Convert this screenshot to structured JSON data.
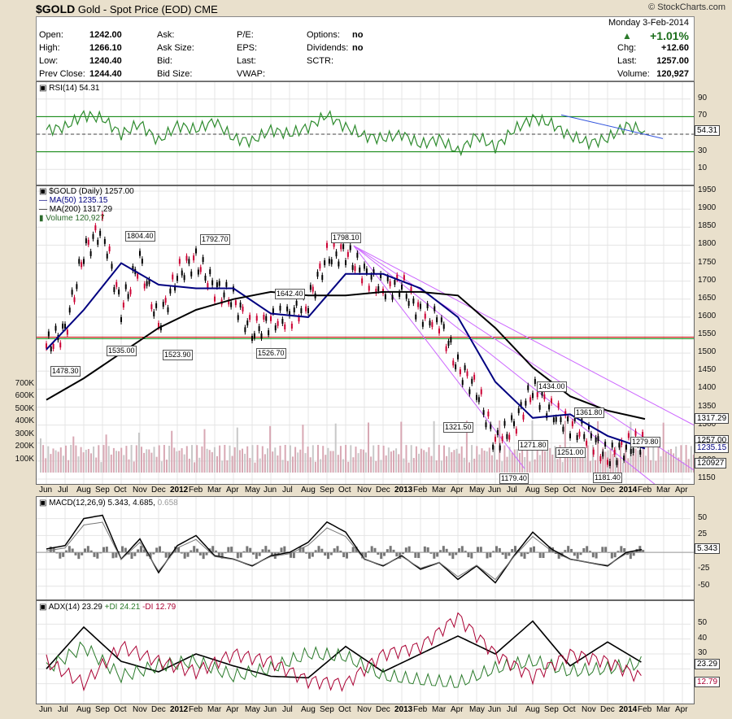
{
  "header": {
    "symbol": "$GOLD",
    "name": "Gold - Spot Price (EOD)",
    "exchange": "CME",
    "brand": "© StockCharts.com"
  },
  "quote": {
    "date": "Monday 3-Feb-2014",
    "change_pct": "+1.01%",
    "arrow": "up-triangle-icon",
    "left": [
      {
        "label": "Open:",
        "value": "1242.00"
      },
      {
        "label": "High:",
        "value": "1266.10"
      },
      {
        "label": "Low:",
        "value": "1240.40"
      },
      {
        "label": "Prev Close:",
        "value": "1244.40"
      }
    ],
    "mid": [
      {
        "label": "Ask:",
        "value": ""
      },
      {
        "label": "Ask Size:",
        "value": ""
      },
      {
        "label": "Bid:",
        "value": ""
      },
      {
        "label": "Bid Size:",
        "value": ""
      }
    ],
    "mid2": [
      {
        "label": "P/E:",
        "value": ""
      },
      {
        "label": "EPS:",
        "value": ""
      },
      {
        "label": "Last:",
        "value": ""
      },
      {
        "label": "VWAP:",
        "value": ""
      }
    ],
    "mid3": [
      {
        "label": "Options:",
        "value": "no"
      },
      {
        "label": "Dividends:",
        "value": "no"
      },
      {
        "label": "SCTR:",
        "value": ""
      }
    ],
    "right": [
      {
        "label": "Chg:",
        "value": "+12.60"
      },
      {
        "label": "Last:",
        "value": "1257.00"
      },
      {
        "label": "Volume:",
        "value": "120,927"
      }
    ]
  },
  "colors": {
    "price_up": "#000000",
    "price_down": "#cc0033",
    "ma50": "#000080",
    "ma200": "#000000",
    "rsi": "#2e8b2e",
    "trend": "#cc66ff",
    "support": "#008000",
    "resistance": "#cc0000",
    "volume": "#c8c8c8"
  },
  "chart_data": [
    {
      "type": "line",
      "panel": "rsi",
      "legend": "RSI(14) 54.31",
      "y_ticks": [
        10,
        30,
        50,
        70,
        90
      ],
      "ylim": [
        0,
        100
      ],
      "last_value": "54.31",
      "overbought": 70,
      "oversold": 30,
      "series": [
        {
          "name": "RSI(14)",
          "x": [
            "2011-06",
            "2011-07",
            "2011-08",
            "2011-09",
            "2011-10",
            "2011-11",
            "2011-12",
            "2012-01",
            "2012-02",
            "2012-03",
            "2012-04",
            "2012-05",
            "2012-06",
            "2012-07",
            "2012-08",
            "2012-09",
            "2012-10",
            "2012-11",
            "2012-12",
            "2013-01",
            "2013-02",
            "2013-03",
            "2013-04",
            "2013-05",
            "2013-06",
            "2013-07",
            "2013-08",
            "2013-09",
            "2013-10",
            "2013-11",
            "2013-12",
            "2014-01",
            "2014-02"
          ],
          "values": [
            55,
            58,
            72,
            68,
            50,
            62,
            42,
            60,
            55,
            65,
            45,
            42,
            55,
            50,
            58,
            72,
            58,
            48,
            45,
            50,
            38,
            45,
            30,
            48,
            35,
            55,
            68,
            62,
            48,
            40,
            45,
            60,
            54
          ]
        }
      ]
    },
    {
      "type": "line",
      "panel": "price",
      "legend": [
        "$GOLD (Daily) 1257.00",
        "MA(50) 1235.15",
        "MA(200) 1317.29",
        "Volume 120,927"
      ],
      "ylim": [
        1150,
        1950
      ],
      "y_ticks": [
        1150,
        1200,
        1250,
        1300,
        1350,
        1400,
        1450,
        1500,
        1550,
        1600,
        1650,
        1700,
        1750,
        1800,
        1850,
        1900,
        1950
      ],
      "vol_ticks": [
        "100K",
        "200K",
        "300K",
        "400K",
        "500K",
        "600K",
        "700K"
      ],
      "x_labels": [
        "Jun",
        "Jul",
        "Aug",
        "Sep",
        "Oct",
        "Nov",
        "Dec",
        "2012",
        "Feb",
        "Mar",
        "Apr",
        "May",
        "Jun",
        "Jul",
        "Aug",
        "Sep",
        "Oct",
        "Nov",
        "Dec",
        "2013",
        "Feb",
        "Mar",
        "Apr",
        "May",
        "Jun",
        "Jul",
        "Aug",
        "Sep",
        "Oct",
        "Nov",
        "Dec",
        "2014",
        "Feb",
        "Mar",
        "Apr"
      ],
      "price_labels": [
        {
          "text": "1478.30",
          "x": "2011-07",
          "y": 1478
        },
        {
          "text": "1804.40",
          "x": "2011-11",
          "y": 1804
        },
        {
          "text": "1535.00",
          "x": "2011-10",
          "y": 1535
        },
        {
          "text": "1523.90",
          "x": "2012-01",
          "y": 1524
        },
        {
          "text": "1792.70",
          "x": "2012-03",
          "y": 1793
        },
        {
          "text": "1526.70",
          "x": "2012-06",
          "y": 1527
        },
        {
          "text": "1642.40",
          "x": "2012-07",
          "y": 1642
        },
        {
          "text": "1798.10",
          "x": "2012-10",
          "y": 1798
        },
        {
          "text": "1321.50",
          "x": "2013-04",
          "y": 1321
        },
        {
          "text": "1179.40",
          "x": "2013-07",
          "y": 1179
        },
        {
          "text": "1271.80",
          "x": "2013-08",
          "y": 1272
        },
        {
          "text": "1434.00",
          "x": "2013-09",
          "y": 1434
        },
        {
          "text": "1251.00",
          "x": "2013-10",
          "y": 1251
        },
        {
          "text": "1361.80",
          "x": "2013-11",
          "y": 1362
        },
        {
          "text": "1181.40",
          "x": "2013-12",
          "y": 1181
        },
        {
          "text": "1279.80",
          "x": "2014-02",
          "y": 1280
        }
      ],
      "right_tags": [
        "1317.29",
        "1257.00",
        "1235.15",
        "120927"
      ],
      "series": [
        {
          "name": "$GOLD",
          "x": [
            "2011-06",
            "2011-07",
            "2011-08",
            "2011-09",
            "2011-10",
            "2011-11",
            "2011-12",
            "2012-01",
            "2012-02",
            "2012-03",
            "2012-04",
            "2012-05",
            "2012-06",
            "2012-07",
            "2012-08",
            "2012-09",
            "2012-10",
            "2012-11",
            "2012-12",
            "2013-01",
            "2013-02",
            "2013-03",
            "2013-04",
            "2013-05",
            "2013-06",
            "2013-07",
            "2013-08",
            "2013-09",
            "2013-10",
            "2013-11",
            "2013-12",
            "2014-01",
            "2014-02"
          ],
          "values": [
            1520,
            1560,
            1780,
            1850,
            1620,
            1760,
            1580,
            1720,
            1760,
            1680,
            1650,
            1560,
            1590,
            1600,
            1640,
            1770,
            1780,
            1720,
            1680,
            1690,
            1610,
            1590,
            1460,
            1400,
            1250,
            1300,
            1400,
            1340,
            1300,
            1270,
            1210,
            1240,
            1257
          ]
        },
        {
          "name": "MA(50)",
          "x": [
            "2011-06",
            "2011-08",
            "2011-10",
            "2011-12",
            "2012-02",
            "2012-04",
            "2012-06",
            "2012-08",
            "2012-10",
            "2012-12",
            "2013-02",
            "2013-04",
            "2013-06",
            "2013-08",
            "2013-10",
            "2013-12",
            "2014-02"
          ],
          "values": [
            1510,
            1620,
            1750,
            1690,
            1680,
            1680,
            1610,
            1600,
            1720,
            1720,
            1680,
            1600,
            1420,
            1320,
            1330,
            1270,
            1235
          ]
        },
        {
          "name": "MA(200)",
          "x": [
            "2011-06",
            "2011-08",
            "2011-10",
            "2011-12",
            "2012-02",
            "2012-04",
            "2012-06",
            "2012-08",
            "2012-10",
            "2012-12",
            "2013-02",
            "2013-04",
            "2013-06",
            "2013-08",
            "2013-10",
            "2013-12",
            "2014-02"
          ],
          "values": [
            1370,
            1430,
            1500,
            1570,
            1620,
            1650,
            1670,
            1660,
            1660,
            1670,
            1670,
            1660,
            1570,
            1460,
            1380,
            1340,
            1317
          ]
        }
      ]
    },
    {
      "type": "line",
      "panel": "macd",
      "legend": [
        "MACD(12,26,9) 5.343,",
        "4.685,",
        "0.658"
      ],
      "ylim": [
        -60,
        70
      ],
      "y_ticks": [
        -50,
        -25,
        0,
        25,
        50
      ],
      "right_tags": [
        "5.343"
      ],
      "series": [
        {
          "name": "MACD",
          "x": [
            "2011-06",
            "2011-07",
            "2011-08",
            "2011-09",
            "2011-10",
            "2011-11",
            "2011-12",
            "2012-01",
            "2012-02",
            "2012-03",
            "2012-04",
            "2012-05",
            "2012-06",
            "2012-07",
            "2012-08",
            "2012-09",
            "2012-10",
            "2012-11",
            "2012-12",
            "2013-01",
            "2013-02",
            "2013-03",
            "2013-04",
            "2013-05",
            "2013-06",
            "2013-07",
            "2013-08",
            "2013-09",
            "2013-10",
            "2013-11",
            "2013-12",
            "2014-01",
            "2014-02"
          ],
          "values": [
            5,
            10,
            50,
            55,
            -10,
            20,
            -30,
            10,
            25,
            -5,
            -10,
            -20,
            -5,
            0,
            15,
            45,
            30,
            -10,
            -20,
            -5,
            -25,
            -15,
            -40,
            -20,
            -45,
            -5,
            30,
            5,
            -10,
            -15,
            -20,
            0,
            5
          ]
        }
      ]
    },
    {
      "type": "line",
      "panel": "adx",
      "legend": [
        "ADX(14) 23.29",
        "+DI 24.21",
        "-DI 12.79"
      ],
      "ylim": [
        0,
        60
      ],
      "y_ticks": [
        10,
        20,
        30,
        40,
        50
      ],
      "right_tags": [
        "23.29",
        "12.79"
      ],
      "series": [
        {
          "name": "ADX(14)",
          "x": [
            "2011-06",
            "2011-08",
            "2011-10",
            "2011-12",
            "2012-02",
            "2012-04",
            "2012-06",
            "2012-08",
            "2012-10",
            "2012-12",
            "2013-02",
            "2013-04",
            "2013-06",
            "2013-08",
            "2013-10",
            "2013-12",
            "2014-02"
          ],
          "values": [
            20,
            48,
            25,
            18,
            30,
            22,
            15,
            14,
            35,
            18,
            30,
            42,
            30,
            52,
            22,
            38,
            23
          ]
        },
        {
          "name": "+DI",
          "x": [
            "2011-06",
            "2011-08",
            "2011-10",
            "2011-12",
            "2012-02",
            "2012-04",
            "2012-06",
            "2012-08",
            "2012-10",
            "2012-12",
            "2013-02",
            "2013-04",
            "2013-06",
            "2013-08",
            "2013-10",
            "2013-12",
            "2014-02"
          ],
          "values": [
            20,
            35,
            15,
            22,
            25,
            15,
            20,
            30,
            28,
            15,
            12,
            10,
            20,
            25,
            18,
            20,
            24
          ]
        },
        {
          "name": "-DI",
          "x": [
            "2011-06",
            "2011-08",
            "2011-10",
            "2011-12",
            "2012-02",
            "2012-04",
            "2012-06",
            "2012-08",
            "2012-10",
            "2012-12",
            "2013-02",
            "2013-04",
            "2013-06",
            "2013-08",
            "2013-10",
            "2013-12",
            "2014-02"
          ],
          "values": [
            25,
            10,
            35,
            25,
            18,
            30,
            25,
            12,
            10,
            30,
            35,
            55,
            30,
            15,
            30,
            25,
            13
          ]
        }
      ]
    }
  ]
}
